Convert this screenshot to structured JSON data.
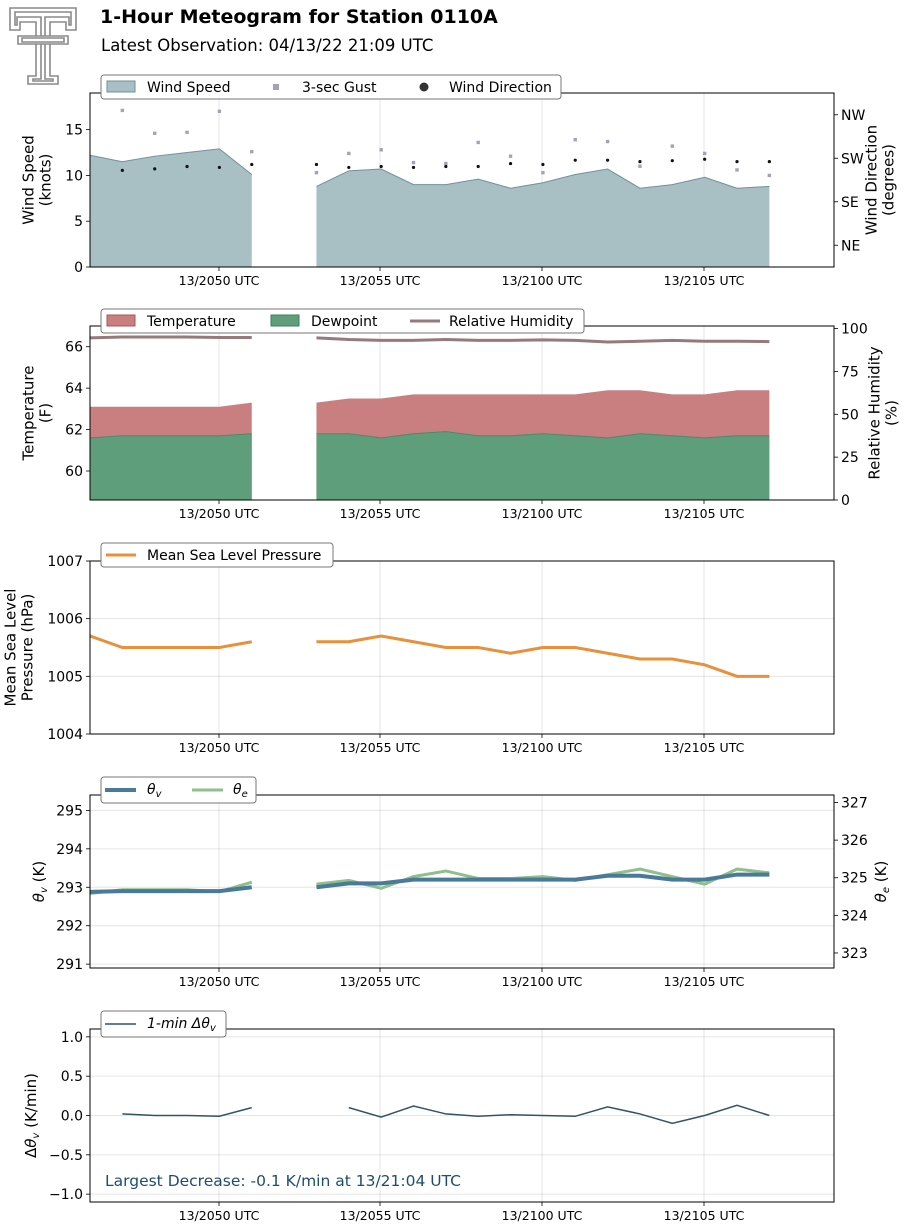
{
  "header": {
    "title": "1-Hour Meteogram for Station 0110A",
    "subtitle": "Latest Observation: 04/13/22 21:09 UTC"
  },
  "colors": {
    "wind_fill": "#a8bfc4",
    "wind_line": "#6f9299",
    "gust": "#a5a1b8",
    "temperature": "#c97f80",
    "dewpoint": "#5f9e7b",
    "rh": "#967a7b",
    "mslp": "#e8903a",
    "theta_v": "#4a7a99",
    "theta_e": "#8fbf8a",
    "dtheta": "#2f5566",
    "annotation": "#1f4e6b",
    "logo": "#8a8a8a"
  },
  "chart_data": [
    {
      "id": "wind",
      "type": "area",
      "x_ticks": [
        "13/2050 UTC",
        "13/2055 UTC",
        "13/2100 UTC",
        "13/2105 UTC"
      ],
      "ylabel": "Wind Speed\n(knots)",
      "ylabel_right": "Wind Direction\n(degrees)",
      "ylim": [
        0,
        19
      ],
      "yticks": [
        0,
        5,
        10,
        15
      ],
      "right_ticks": [
        "NE",
        "SE",
        "SW",
        "NW"
      ],
      "right_tick_values": [
        45,
        135,
        225,
        315
      ],
      "right_lim": [
        0,
        360
      ],
      "legend": [
        "Wind Speed",
        "3-sec Gust",
        "Wind Direction"
      ],
      "series": [
        {
          "name": "Wind Speed",
          "segments": [
            {
              "x": [
                0,
                1,
                2,
                3,
                4,
                5
              ],
              "y": [
                12.2,
                11.5,
                12.1,
                12.5,
                12.9,
                10.1
              ]
            },
            {
              "x": [
                7,
                8,
                9,
                10,
                11,
                12,
                13,
                14,
                15,
                16,
                17,
                18,
                19,
                20,
                21
              ],
              "y": [
                8.8,
                10.5,
                10.7,
                9.0,
                9.0,
                9.6,
                8.6,
                9.2,
                10.1,
                10.7,
                8.6,
                9.0,
                9.8,
                8.6,
                8.8
              ]
            }
          ]
        },
        {
          "name": "3-sec Gust",
          "x": [
            1,
            2,
            3,
            4,
            5,
            7,
            8,
            9,
            10,
            11,
            12,
            13,
            14,
            15,
            16,
            17,
            18,
            19,
            20,
            21
          ],
          "y": [
            17.1,
            14.6,
            14.7,
            17.0,
            12.6,
            10.3,
            12.4,
            12.8,
            11.4,
            11.3,
            13.6,
            12.1,
            10.3,
            13.9,
            13.7,
            11.0,
            13.2,
            12.4,
            10.6,
            10.0
          ]
        },
        {
          "name": "Wind Direction",
          "x": [
            1,
            2,
            3,
            4,
            5,
            7,
            8,
            9,
            10,
            11,
            12,
            13,
            14,
            15,
            16,
            17,
            18,
            19,
            20,
            21
          ],
          "y": [
            200,
            203,
            208,
            206,
            212,
            212,
            206,
            208,
            206,
            208,
            208,
            214,
            212,
            221,
            221,
            218,
            220,
            223,
            218,
            218
          ]
        }
      ]
    },
    {
      "id": "temp",
      "type": "area",
      "x_ticks": [
        "13/2050 UTC",
        "13/2055 UTC",
        "13/2100 UTC",
        "13/2105 UTC"
      ],
      "ylabel": "Temperature\n(F)",
      "ylabel_right": "Relative Humidity\n(%)",
      "ylim": [
        58.6,
        67.0
      ],
      "yticks": [
        60,
        62,
        64,
        66
      ],
      "right_lim": [
        0,
        101.5
      ],
      "right_ticks": [
        0,
        25,
        50,
        75,
        100
      ],
      "legend": [
        "Temperature",
        "Dewpoint",
        "Relative Humidity"
      ],
      "series": [
        {
          "name": "Temperature",
          "segments": [
            {
              "x": [
                0,
                1,
                2,
                3,
                4,
                5
              ],
              "y": [
                63.1,
                63.1,
                63.1,
                63.1,
                63.1,
                63.3
              ]
            },
            {
              "x": [
                7,
                8,
                9,
                10,
                11,
                12,
                13,
                14,
                15,
                16,
                17,
                18,
                19,
                20,
                21
              ],
              "y": [
                63.3,
                63.5,
                63.5,
                63.7,
                63.7,
                63.7,
                63.7,
                63.7,
                63.7,
                63.9,
                63.9,
                63.7,
                63.7,
                63.9,
                63.9
              ]
            }
          ]
        },
        {
          "name": "Dewpoint",
          "segments": [
            {
              "x": [
                0,
                1,
                2,
                3,
                4,
                5
              ],
              "y": [
                61.6,
                61.7,
                61.7,
                61.7,
                61.7,
                61.8
              ]
            },
            {
              "x": [
                7,
                8,
                9,
                10,
                11,
                12,
                13,
                14,
                15,
                16,
                17,
                18,
                19,
                20,
                21
              ],
              "y": [
                61.8,
                61.8,
                61.6,
                61.8,
                61.9,
                61.7,
                61.7,
                61.8,
                61.7,
                61.6,
                61.8,
                61.7,
                61.6,
                61.7,
                61.7
              ]
            }
          ]
        },
        {
          "name": "Relative Humidity",
          "segments": [
            {
              "x": [
                0,
                1,
                2,
                3,
                4,
                5
              ],
              "y": [
                94.6,
                95.1,
                95.1,
                95.1,
                94.8,
                94.8
              ]
            },
            {
              "x": [
                7,
                8,
                9,
                10,
                11,
                12,
                13,
                14,
                15,
                16,
                17,
                18,
                19,
                20,
                21
              ],
              "y": [
                94.6,
                93.6,
                93.1,
                93.1,
                93.6,
                93.1,
                93.1,
                93.4,
                93.1,
                92.2,
                92.6,
                93.1,
                92.6,
                92.6,
                92.4
              ]
            }
          ]
        }
      ]
    },
    {
      "id": "mslp",
      "type": "line",
      "x_ticks": [
        "13/2050 UTC",
        "13/2055 UTC",
        "13/2100 UTC",
        "13/2105 UTC"
      ],
      "ylabel": "Mean Sea Level\nPressure (hPa)",
      "ylim": [
        1004,
        1007
      ],
      "yticks": [
        1004,
        1005,
        1006,
        1007
      ],
      "legend": [
        "Mean Sea Level Pressure"
      ],
      "series": [
        {
          "name": "Mean Sea Level Pressure",
          "segments": [
            {
              "x": [
                0,
                1,
                2,
                3,
                4,
                5
              ],
              "y": [
                1005.7,
                1005.5,
                1005.5,
                1005.5,
                1005.5,
                1005.6
              ]
            },
            {
              "x": [
                7,
                8,
                9,
                10,
                11,
                12,
                13,
                14,
                15,
                16,
                17,
                18,
                19,
                20,
                21
              ],
              "y": [
                1005.6,
                1005.6,
                1005.7,
                1005.6,
                1005.5,
                1005.5,
                1005.4,
                1005.5,
                1005.5,
                1005.4,
                1005.3,
                1005.3,
                1005.2,
                1005.0,
                1005.0
              ]
            }
          ]
        }
      ]
    },
    {
      "id": "theta",
      "type": "line",
      "x_ticks": [
        "13/2050 UTC",
        "13/2055 UTC",
        "13/2100 UTC",
        "13/2105 UTC"
      ],
      "ylabel": "θv (K)",
      "ylabel_right": "θe (K)",
      "ylim": [
        290.9,
        295.4
      ],
      "yticks": [
        291,
        292,
        293,
        294,
        295
      ],
      "right_lim": [
        322.6,
        327.2
      ],
      "right_ticks": [
        323,
        324,
        325,
        326,
        327
      ],
      "legend": [
        "θv",
        "θe"
      ],
      "series": [
        {
          "name": "θv",
          "segments": [
            {
              "x": [
                0,
                1,
                2,
                3,
                4,
                5
              ],
              "y": [
                292.88,
                292.9,
                292.9,
                292.9,
                292.9,
                293.0
              ]
            },
            {
              "x": [
                7,
                8,
                9,
                10,
                11,
                12,
                13,
                14,
                15,
                16,
                17,
                18,
                19,
                20,
                21
              ],
              "y": [
                293.0,
                293.1,
                293.1,
                293.2,
                293.2,
                293.2,
                293.2,
                293.2,
                293.2,
                293.3,
                293.3,
                293.2,
                293.2,
                293.33,
                293.33
              ]
            }
          ]
        },
        {
          "name": "θe",
          "right_axis": true,
          "segments": [
            {
              "x": [
                0,
                1,
                2,
                3,
                4,
                5
              ],
              "y": [
                324.58,
                324.68,
                324.68,
                324.68,
                324.63,
                324.88
              ]
            },
            {
              "x": [
                7,
                8,
                9,
                10,
                11,
                12,
                13,
                14,
                15,
                16,
                17,
                18,
                19,
                20,
                21
              ],
              "y": [
                324.83,
                324.93,
                324.72,
                325.03,
                325.18,
                324.98,
                324.98,
                325.03,
                324.93,
                325.08,
                325.23,
                325.03,
                324.83,
                325.23,
                325.13
              ]
            }
          ]
        }
      ]
    },
    {
      "id": "dtheta",
      "type": "line",
      "x_ticks": [
        "13/2050 UTC",
        "13/2055 UTC",
        "13/2100 UTC",
        "13/2105 UTC"
      ],
      "ylabel": "Δθv (K/min)",
      "ylim": [
        -1.1,
        1.1
      ],
      "yticks": [
        -1.0,
        -0.5,
        0.0,
        0.5,
        1.0
      ],
      "legend": [
        "1-min Δθv"
      ],
      "annotation": "Largest Decrease: -0.1 K/min at 13/21:04 UTC",
      "series": [
        {
          "name": "1-min Δθv",
          "segments": [
            {
              "x": [
                1,
                2,
                3,
                4,
                5
              ],
              "y": [
                0.02,
                0.0,
                0.0,
                -0.01,
                0.1
              ]
            },
            {
              "x": [
                8,
                9,
                10,
                11,
                12,
                13,
                14,
                15,
                16,
                17,
                18,
                19,
                20,
                21
              ],
              "y": [
                0.1,
                -0.02,
                0.12,
                0.02,
                -0.01,
                0.01,
                0.0,
                -0.01,
                0.11,
                0.02,
                -0.1,
                0.0,
                0.13,
                0.0
              ]
            }
          ]
        }
      ]
    }
  ]
}
